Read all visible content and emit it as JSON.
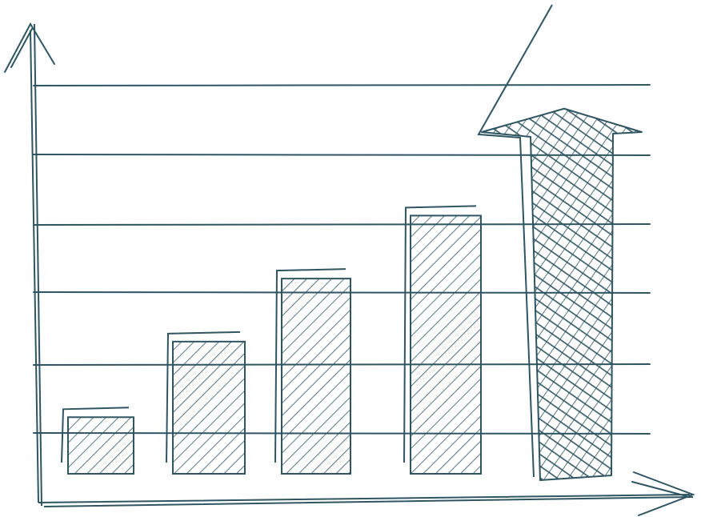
{
  "chart_data": {
    "type": "bar",
    "style": "hand-drawn sketch with diagonal hatching",
    "categories": [
      "",
      "",
      "",
      "",
      ""
    ],
    "series": [
      {
        "values": [
          1,
          2.2,
          3.2,
          4.2,
          6
        ]
      }
    ],
    "last_bar_shape": "upward arrow",
    "ylim": [
      0,
      6.2
    ],
    "grid": true,
    "gridline_count": 6,
    "legend": "none",
    "title": "",
    "xlabel": "",
    "ylabel": ""
  },
  "colors": {
    "ink": "#2e5561",
    "background": "#ffffff"
  }
}
